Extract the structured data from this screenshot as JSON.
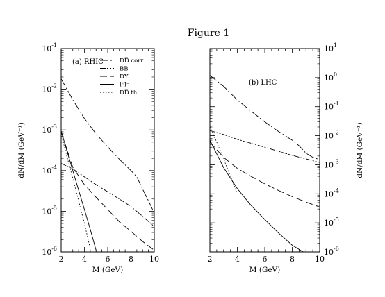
{
  "figure": {
    "title": "Figure 1"
  },
  "chart_data": [
    {
      "type": "line",
      "panel": "left",
      "panel_label": "(a) RHIC",
      "xlabel": "M (GeV)",
      "ylabel": "dN/dM (GeV⁻¹)",
      "xlim": [
        2,
        10
      ],
      "ylim": [
        1e-06,
        0.1
      ],
      "yscale": "log",
      "x_ticks": [
        2,
        4,
        6,
        8,
        10
      ],
      "y_ticks": [
        {
          "value": 0.1,
          "base": "10",
          "exp": "-1"
        },
        {
          "value": 0.01,
          "base": "10",
          "exp": "-2"
        },
        {
          "value": 0.001,
          "base": "10",
          "exp": "-3"
        },
        {
          "value": 0.0001,
          "base": "10",
          "exp": "-4"
        },
        {
          "value": 1e-05,
          "base": "10",
          "exp": "-5"
        },
        {
          "value": 1e-06,
          "base": "10",
          "exp": "-6"
        }
      ],
      "y_tick_side": "left",
      "legend_position": "top-right",
      "grid": false,
      "series": [
        {
          "name": "DD̅ corr",
          "dash": "12,3,2,3",
          "x": [
            2,
            3,
            4,
            5,
            6,
            7,
            8,
            8.5,
            9,
            9.5,
            10
          ],
          "y": [
            0.018,
            0.0055,
            0.0019,
            0.0008,
            0.00038,
            0.00019,
            0.0001,
            7e-05,
            3.5e-05,
            1.8e-05,
            9e-06
          ]
        },
        {
          "name": "BB̅",
          "dash": "8,2,2,2,2,2",
          "x": [
            2,
            3,
            4,
            5,
            6,
            7,
            8,
            9,
            10
          ],
          "y": [
            0.00015,
            0.00011,
            7e-05,
            4.5e-05,
            3e-05,
            2e-05,
            1.3e-05,
            7.5e-06,
            4.2e-06
          ]
        },
        {
          "name": "DY",
          "dash": "10,5",
          "x": [
            2,
            3,
            4,
            5,
            6,
            7,
            8,
            9,
            10
          ],
          "y": [
            0.0009,
            0.00012,
            4.5e-05,
            2.2e-05,
            1.1e-05,
            5.5e-06,
            3.2e-06,
            1.8e-06,
            1.1e-06
          ]
        },
        {
          "name": "l⁺l⁻",
          "dash": "",
          "x": [
            2,
            2.5,
            3,
            3.5,
            4,
            4.5,
            5
          ],
          "y": [
            0.00095,
            0.0003,
            0.0001,
            3.3e-05,
            1.1e-05,
            3.6e-06,
            1.1e-06
          ]
        },
        {
          "name": "DD̅ th",
          "dash": "1.5,2.5",
          "x": [
            2,
            2.5,
            3,
            3.5,
            4,
            4.5
          ],
          "y": [
            0.0008,
            0.00022,
            6.5e-05,
            1.8e-05,
            5e-06,
            1.2e-06
          ]
        }
      ]
    },
    {
      "type": "line",
      "panel": "right",
      "panel_label": "(b) LHC",
      "xlabel": "M (GeV)",
      "ylabel": "dN/dM (GeV⁻¹)",
      "xlim": [
        2,
        10
      ],
      "ylim": [
        1e-06,
        10
      ],
      "yscale": "log",
      "x_ticks": [
        2,
        4,
        6,
        8,
        10
      ],
      "y_ticks": [
        {
          "value": 10,
          "base": "10",
          "exp": "1"
        },
        {
          "value": 1,
          "base": "10",
          "exp": "0"
        },
        {
          "value": 0.1,
          "base": "10",
          "exp": "-1"
        },
        {
          "value": 0.01,
          "base": "10",
          "exp": "-2"
        },
        {
          "value": 0.001,
          "base": "10",
          "exp": "-3"
        },
        {
          "value": 0.0001,
          "base": "10",
          "exp": "-4"
        },
        {
          "value": 1e-05,
          "base": "10",
          "exp": "-5"
        },
        {
          "value": 1e-06,
          "base": "10",
          "exp": "-6"
        }
      ],
      "y_tick_side": "right",
      "grid": false,
      "series": [
        {
          "dash": "12,3,2,3",
          "x": [
            2,
            3,
            4,
            5,
            6,
            7,
            8,
            8.5,
            9,
            9.5,
            10
          ],
          "y": [
            1.2,
            0.5,
            0.17,
            0.07,
            0.03,
            0.014,
            0.007,
            0.0045,
            0.0025,
            0.0018,
            0.0015
          ]
        },
        {
          "dash": "8,2,2,2,2,2",
          "x": [
            2,
            3,
            4,
            5,
            6,
            7,
            8,
            9,
            10
          ],
          "y": [
            0.015,
            0.011,
            0.0075,
            0.0055,
            0.004,
            0.0029,
            0.0021,
            0.0016,
            0.0012
          ]
        },
        {
          "dash": "10,5",
          "x": [
            2,
            3,
            4,
            5,
            6,
            7,
            8,
            9,
            10
          ],
          "y": [
            0.006,
            0.0018,
            0.00075,
            0.0004,
            0.00022,
            0.00013,
            8e-05,
            5.2e-05,
            3.5e-05
          ]
        },
        {
          "dash": "",
          "x": [
            2,
            3,
            4,
            5,
            6,
            7,
            8,
            8.8
          ],
          "y": [
            0.007,
            0.0008,
            0.00015,
            4e-05,
            1.3e-05,
            4.5e-06,
            1.7e-06,
            1e-06
          ]
        },
        {
          "dash": "1.5,2.5",
          "x": [
            2,
            2.5,
            3,
            3.5,
            4
          ],
          "y": [
            0.02,
            0.006,
            0.0016,
            0.0004,
            0.0001
          ]
        }
      ]
    }
  ]
}
